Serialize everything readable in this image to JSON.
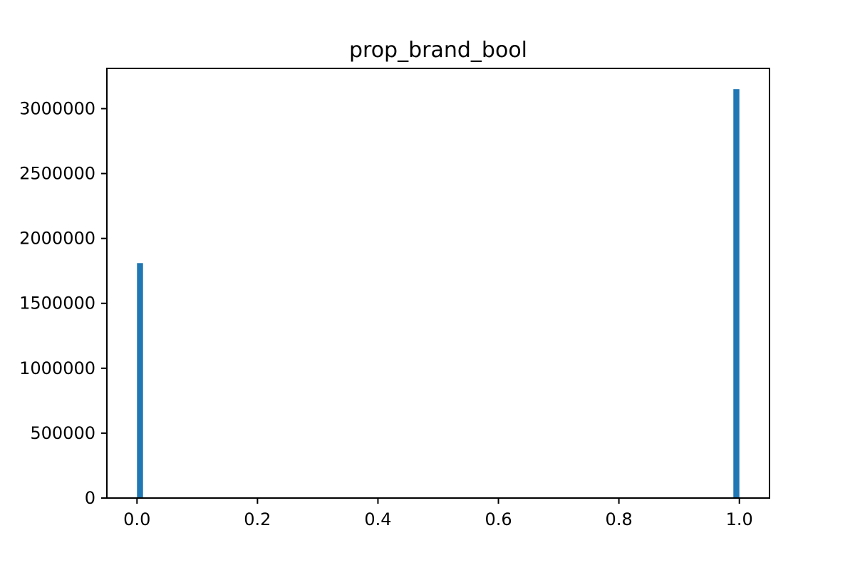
{
  "chart_data": {
    "type": "bar",
    "title": "prop_brand_bool",
    "xlabel": "",
    "ylabel": "",
    "xlim": [
      -0.05,
      1.05
    ],
    "ylim": [
      0,
      3310000
    ],
    "bin_width": 0.01,
    "color": "#1f77b4",
    "grid": false,
    "x_ticks": [
      0.0,
      0.2,
      0.4,
      0.6,
      0.8,
      1.0
    ],
    "x_tick_labels": [
      "0.0",
      "0.2",
      "0.4",
      "0.6",
      "0.8",
      "1.0"
    ],
    "y_ticks": [
      0,
      500000,
      1000000,
      1500000,
      2000000,
      2500000,
      3000000
    ],
    "y_tick_labels": [
      "0",
      "500000",
      "1000000",
      "1500000",
      "2000000",
      "2500000",
      "3000000"
    ],
    "bars": [
      {
        "x_start": 0.0,
        "x_end": 0.01,
        "value": 1810000
      },
      {
        "x_start": 0.99,
        "x_end": 1.0,
        "value": 3150000
      }
    ]
  }
}
